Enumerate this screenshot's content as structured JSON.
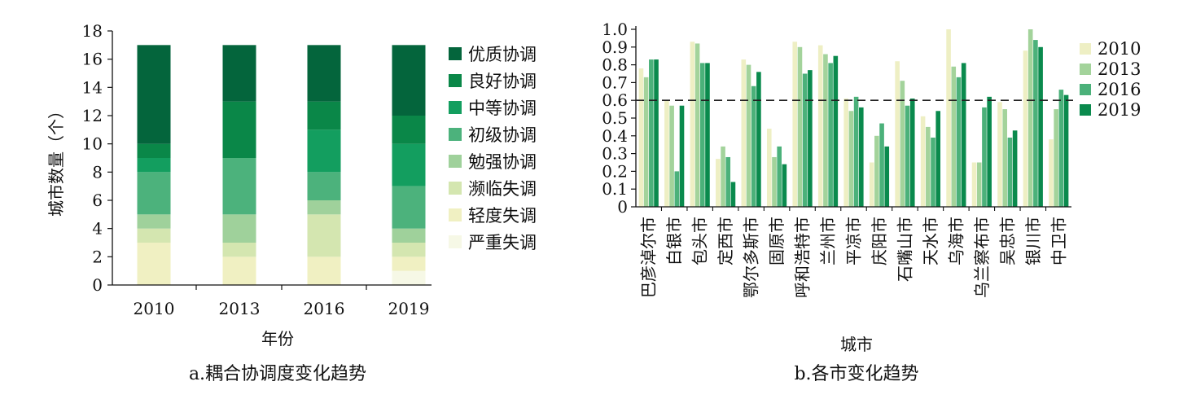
{
  "chart_data": [
    {
      "type": "bar",
      "stacked": true,
      "categories": [
        "2010",
        "2013",
        "2016",
        "2019"
      ],
      "series": [
        {
          "name": "严重失调",
          "color": "#f6f8e6",
          "values": [
            0,
            0,
            0,
            1
          ]
        },
        {
          "name": "轻度失调",
          "color": "#f0f0c2",
          "values": [
            3,
            2,
            2,
            1
          ]
        },
        {
          "name": "濒临失调",
          "color": "#d4e6b0",
          "values": [
            1,
            1,
            3,
            1
          ]
        },
        {
          "name": "勉强协调",
          "color": "#9fd19b",
          "values": [
            1,
            2,
            1,
            1
          ]
        },
        {
          "name": "初级协调",
          "color": "#4cb27c",
          "values": [
            3,
            4,
            2,
            3
          ]
        },
        {
          "name": "中等协调",
          "color": "#139e5f",
          "values": [
            1,
            0,
            3,
            3
          ]
        },
        {
          "name": "良好协调",
          "color": "#0a8748",
          "values": [
            1,
            4,
            2,
            2
          ]
        },
        {
          "name": "优质协调",
          "color": "#04653c",
          "values": [
            7,
            4,
            4,
            5
          ]
        }
      ],
      "legend_order": [
        "优质协调",
        "良好协调",
        "中等协调",
        "初级协调",
        "勉强协调",
        "濒临失调",
        "轻度失调",
        "严重失调"
      ],
      "xlabel": "年份",
      "ylabel": "城市数量（个）",
      "ylim": [
        0,
        18
      ],
      "yticks": [
        "0",
        "2",
        "4",
        "6",
        "8",
        "10",
        "12",
        "14",
        "16",
        "18"
      ],
      "caption": "a.耦合协调度变化趋势",
      "legend_position": "right"
    },
    {
      "type": "bar",
      "categories": [
        "巴彦淖尔市",
        "白银市",
        "包头市",
        "定西市",
        "鄂尔多斯市",
        "固原市",
        "呼和浩特市",
        "兰州市",
        "平凉市",
        "庆阳市",
        "石嘴山市",
        "天水市",
        "乌海市",
        "乌兰察布市",
        "吴忠市",
        "银川市",
        "中卫市"
      ],
      "series": [
        {
          "name": "2010",
          "color": "#eeefc4",
          "values": [
            0.78,
            0.6,
            0.93,
            0.27,
            0.83,
            0.44,
            0.93,
            0.91,
            0.61,
            0.25,
            0.82,
            0.51,
            1.0,
            0.25,
            0.59,
            0.88,
            0.38
          ]
        },
        {
          "name": "2013",
          "color": "#a3d39b",
          "values": [
            0.73,
            0.57,
            0.92,
            0.34,
            0.8,
            0.28,
            0.9,
            0.86,
            0.54,
            0.4,
            0.71,
            0.45,
            0.79,
            0.25,
            0.55,
            1.0,
            0.55
          ]
        },
        {
          "name": "2016",
          "color": "#4bb17a",
          "values": [
            0.83,
            0.2,
            0.81,
            0.28,
            0.68,
            0.34,
            0.75,
            0.81,
            0.62,
            0.47,
            0.57,
            0.39,
            0.73,
            0.56,
            0.39,
            0.94,
            0.66
          ]
        },
        {
          "name": "2019",
          "color": "#0a8a4d",
          "values": [
            0.83,
            0.57,
            0.81,
            0.14,
            0.76,
            0.24,
            0.77,
            0.85,
            0.56,
            0.34,
            0.61,
            0.54,
            0.81,
            0.62,
            0.43,
            0.9,
            0.63
          ]
        }
      ],
      "reference_line": 0.6,
      "xlabel": "城市",
      "ylabel": "",
      "ylim": [
        0,
        1.0
      ],
      "yticks": [
        "0",
        "0.1",
        "0.2",
        "0.3",
        "0.4",
        "0.5",
        "0.6",
        "0.7",
        "0.8",
        "0.9",
        "1.0"
      ],
      "caption": "b.各市变化趋势",
      "legend_position": "right"
    }
  ]
}
